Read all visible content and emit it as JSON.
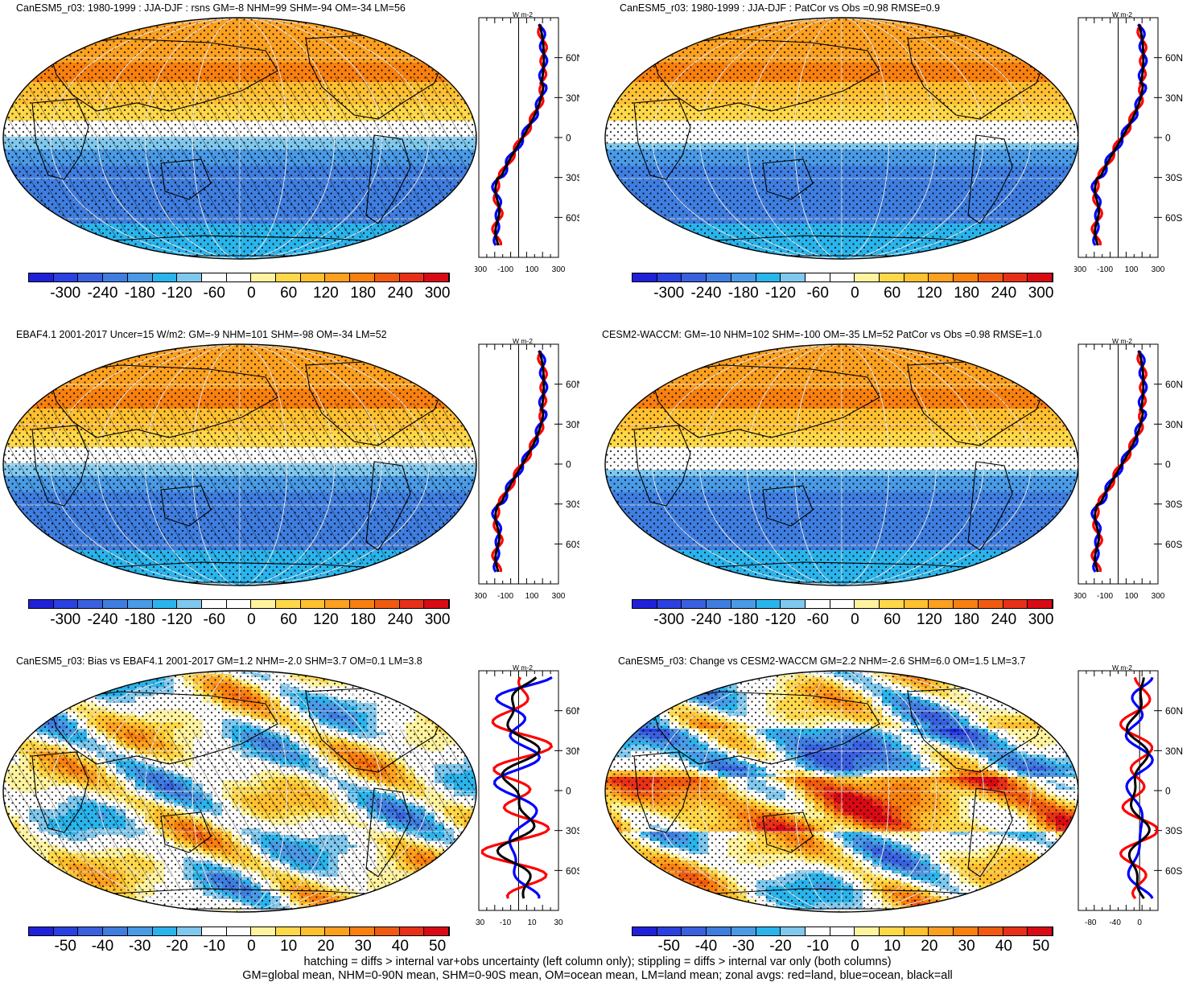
{
  "panels": [
    {
      "title": "CanESM5_r03: 1980-1999 : JJA-DJF : rsns GM=-8 NHM=99 SHM=-94 OM=-34 LM=56",
      "cbar_labels": [
        "-300",
        "-240",
        "-180",
        "-120",
        "-60",
        "0",
        "60",
        "120",
        "180",
        "240",
        "300"
      ],
      "zonal_ticks_x": [
        "-300",
        "-100",
        "100",
        "300"
      ],
      "zonal_xlim": [
        -300,
        300
      ],
      "hatched": true,
      "style": "clim"
    },
    {
      "title": "CanESM5_r03: 1980-1999 : JJA-DJF : PatCor vs Obs =0.98 RMSE=0.9",
      "cbar_labels": [
        "-300",
        "-240",
        "-180",
        "-120",
        "-60",
        "0",
        "60",
        "120",
        "180",
        "240",
        "300"
      ],
      "zonal_ticks_x": [
        "-300",
        "-100",
        "100",
        "300"
      ],
      "zonal_xlim": [
        -300,
        300
      ],
      "hatched": false,
      "style": "clim"
    },
    {
      "title": "EBAF4.1 2001-2017 Uncer=15 W/m2: GM=-9 NHM=101 SHM=-98 OM=-34 LM=52",
      "cbar_labels": [
        "-300",
        "-240",
        "-180",
        "-120",
        "-60",
        "0",
        "60",
        "120",
        "180",
        "240",
        "300"
      ],
      "zonal_ticks_x": [
        "-300",
        "-100",
        "100",
        "300"
      ],
      "zonal_xlim": [
        -300,
        300
      ],
      "hatched": true,
      "style": "clim"
    },
    {
      "title": "CESM2-WACCM: GM=-10 NHM=102 SHM=-100 OM=-35 LM=52 PatCor vs Obs =0.98 RMSE=1.0",
      "cbar_labels": [
        "-300",
        "-240",
        "-180",
        "-120",
        "-60",
        "0",
        "60",
        "120",
        "180",
        "240",
        "300"
      ],
      "zonal_ticks_x": [
        "-300",
        "-100",
        "100",
        "300"
      ],
      "zonal_xlim": [
        -300,
        300
      ],
      "hatched": false,
      "style": "clim"
    },
    {
      "title": "CanESM5_r03: Bias vs EBAF4.1 2001-2017 GM=1.2 NHM=-2.0 SHM=3.7 OM=0.1 LM=3.8",
      "cbar_labels": [
        "-50",
        "-40",
        "-30",
        "-20",
        "-10",
        "0",
        "10",
        "20",
        "30",
        "40",
        "50"
      ],
      "zonal_ticks_x": [
        "-30",
        "-10",
        "10",
        "30"
      ],
      "zonal_xlim": [
        -30,
        30
      ],
      "hatched": true,
      "style": "diff"
    },
    {
      "title": "CanESM5_r03: Change vs CESM2-WACCM GM=2.2 NHM=-2.6 SHM=6.0 OM=1.5 LM=3.7",
      "cbar_labels": [
        "-50",
        "-40",
        "-30",
        "-20",
        "-10",
        "0",
        "10",
        "20",
        "30",
        "40",
        "50"
      ],
      "zonal_ticks_x": [
        "-80",
        "-40",
        "0"
      ],
      "zonal_xlim": [
        -100,
        30
      ],
      "hatched": false,
      "style": "diff2"
    }
  ],
  "zonal_units": "W m-2",
  "lat_labels": [
    "60N",
    "30N",
    "0",
    "30S",
    "60S"
  ],
  "colors": {
    "palette": [
      "#2020d8",
      "#2a40e0",
      "#3a60e0",
      "#3f7ee0",
      "#4a9ae6",
      "#2ab4ec",
      "#80c8ee",
      "#ffffff",
      "#ffffff",
      "#fff3a0",
      "#ffd84a",
      "#ffc030",
      "#fca020",
      "#f88010",
      "#f05a10",
      "#e83018",
      "#d80a14"
    ],
    "land_line": "#ff0000",
    "ocean_line": "#0000ff",
    "all_line": "#000000"
  },
  "footer": [
    "hatching = diffs > internal var+obs uncertainty (left column only); stippling = diffs > internal var only (both columns)",
    "GM=global mean, NHM=0-90N mean, SHM=0-90S mean, OM=ocean mean, LM=land mean; zonal avgs: red=land, blue=ocean, black=all"
  ]
}
